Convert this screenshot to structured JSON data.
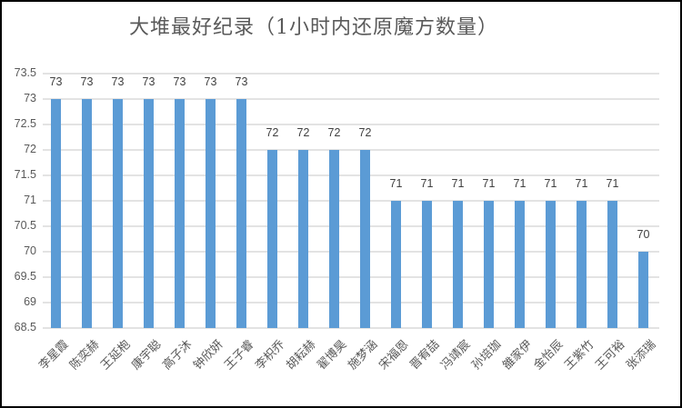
{
  "chart_data": {
    "type": "bar",
    "title": "大堆最好纪录（1小时内还原魔方数量）",
    "xlabel": "",
    "ylabel": "",
    "ylim": [
      68.5,
      73.5
    ],
    "yticks": [
      "73.5",
      "73",
      "72.5",
      "72",
      "71.5",
      "71",
      "70.5",
      "70",
      "69.5",
      "69",
      "68.5"
    ],
    "grid": true,
    "legend": null,
    "bar_color": "#5b9bd5",
    "categories": [
      "李星霞",
      "陈奕赫",
      "王延枹",
      "康宇聪",
      "高子沐",
      "钟欣妍",
      "王子睿",
      "李枳乔",
      "胡耘赫",
      "翟博昊",
      "施梦涵",
      "宋福恩",
      "晋宥喆",
      "冯靖宸",
      "孙培珈",
      "雒家伊",
      "金怡辰",
      "王紫竹",
      "王可裕",
      "张添瑞"
    ],
    "values": [
      73,
      73,
      73,
      73,
      73,
      73,
      73,
      72,
      72,
      72,
      72,
      71,
      71,
      71,
      71,
      71,
      71,
      71,
      71,
      70
    ],
    "data_labels": [
      "73",
      "73",
      "73",
      "73",
      "73",
      "73",
      "73",
      "72",
      "72",
      "72",
      "72",
      "71",
      "71",
      "71",
      "71",
      "71",
      "71",
      "71",
      "71",
      "70"
    ]
  }
}
